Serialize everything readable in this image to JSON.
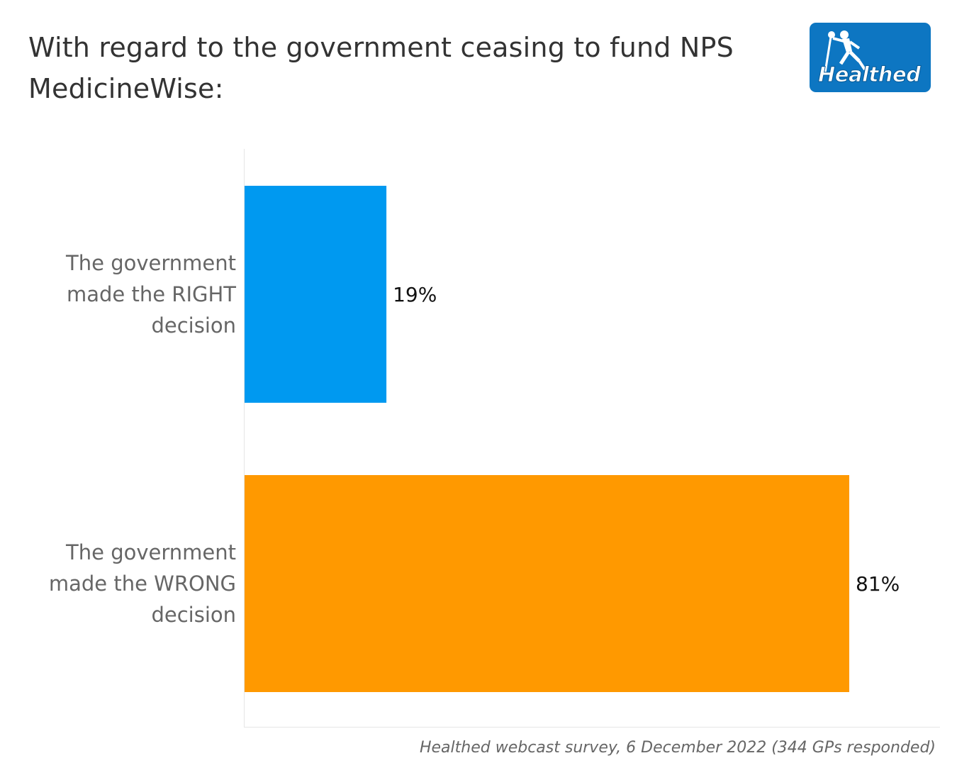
{
  "title": "With regard to the government ceasing to fund NPS MedicineWise:",
  "logo": {
    "text": "Healthed",
    "icon": "hermes-figure-icon",
    "background": "#0d76c2"
  },
  "source": "Healthed webcast survey, 6 December 2022 (344 GPs responded)",
  "chart_data": {
    "type": "bar",
    "orientation": "horizontal",
    "categories": [
      [
        "The government",
        "made the RIGHT",
        "decision"
      ],
      [
        "The government",
        "made the WRONG",
        "decision"
      ]
    ],
    "values": [
      19,
      81
    ],
    "value_labels": [
      "19%",
      "81%"
    ],
    "colors": [
      "#0099f0",
      "#ff9900"
    ],
    "xlim": [
      0,
      90
    ],
    "grid": false,
    "legend": "none"
  }
}
